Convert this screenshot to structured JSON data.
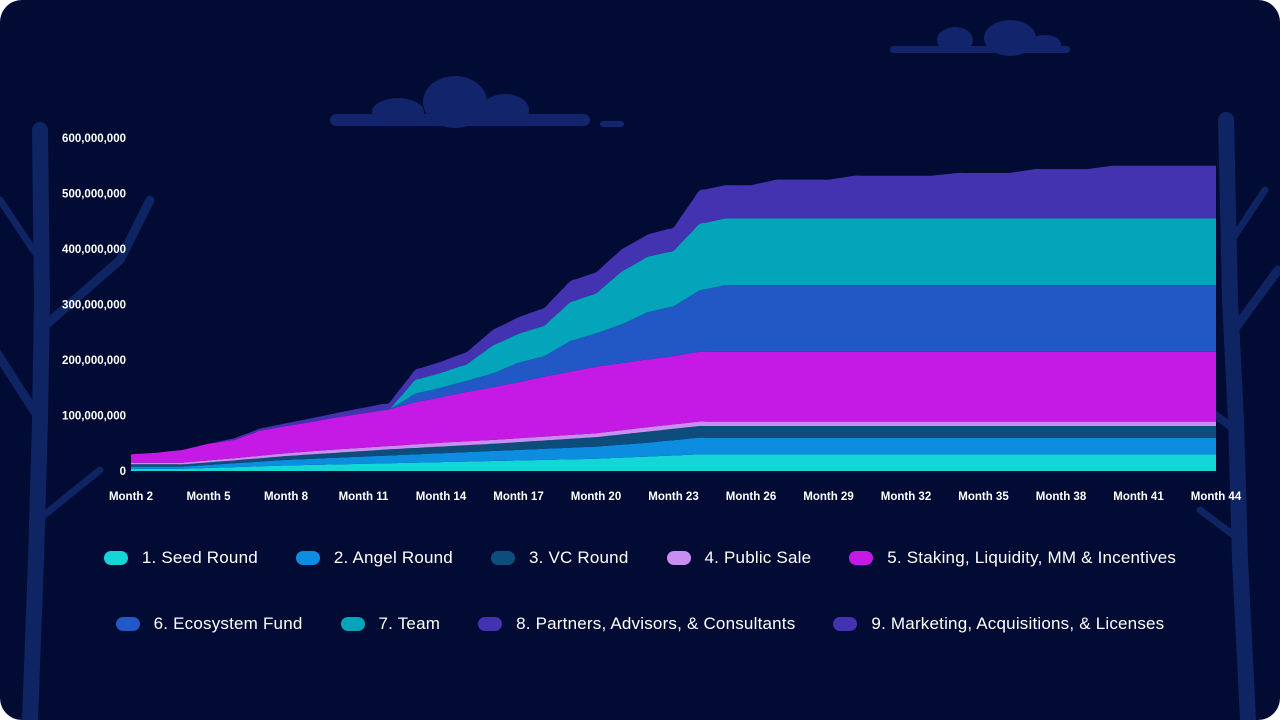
{
  "colors": {
    "background": "#020b33",
    "text": "#ffffff",
    "decoration": "#12246b"
  },
  "chart_data": {
    "type": "area",
    "stacked": true,
    "x_axis_label_prefix": "Month",
    "x_tick_labels": [
      "Month 2",
      "Month 5",
      "Month 8",
      "Month 11",
      "Month 14",
      "Month 17",
      "Month 20",
      "Month 23",
      "Month 26",
      "Month 29",
      "Month 32",
      "Month 35",
      "Month 38",
      "Month 41",
      "Month 44"
    ],
    "y_tick_labels": [
      "0",
      "100,000,000",
      "200,000,000",
      "300,000,000",
      "400,000,000",
      "500,000,000",
      "600,000,000"
    ],
    "ylim": [
      0,
      600000000
    ],
    "xlim": [
      2,
      44
    ],
    "grid": false,
    "legend_position": "bottom",
    "series": [
      {
        "name": "1. Seed Round",
        "color": "#14d6d6",
        "points": [
          [
            2,
            4000000
          ],
          [
            4,
            4000000
          ],
          [
            6,
            7000000
          ],
          [
            8,
            10000000
          ],
          [
            10,
            12000000
          ],
          [
            12,
            14000000
          ],
          [
            14,
            16000000
          ],
          [
            16,
            18000000
          ],
          [
            18,
            20000000
          ],
          [
            20,
            22000000
          ],
          [
            22,
            26000000
          ],
          [
            24,
            30000000
          ],
          [
            26,
            30000000
          ],
          [
            44,
            30000000
          ]
        ]
      },
      {
        "name": "2. Angel Round",
        "color": "#0c8de0",
        "points": [
          [
            2,
            4000000
          ],
          [
            4,
            4000000
          ],
          [
            6,
            7000000
          ],
          [
            8,
            10000000
          ],
          [
            10,
            12000000
          ],
          [
            12,
            14000000
          ],
          [
            14,
            16000000
          ],
          [
            16,
            18000000
          ],
          [
            18,
            20000000
          ],
          [
            20,
            22000000
          ],
          [
            22,
            25000000
          ],
          [
            24,
            30000000
          ],
          [
            26,
            30000000
          ],
          [
            44,
            30000000
          ]
        ]
      },
      {
        "name": "3. VC Round",
        "color": "#0d4d7c",
        "points": [
          [
            2,
            4000000
          ],
          [
            4,
            4000000
          ],
          [
            6,
            5000000
          ],
          [
            8,
            7000000
          ],
          [
            10,
            9000000
          ],
          [
            12,
            11000000
          ],
          [
            14,
            12000000
          ],
          [
            16,
            13000000
          ],
          [
            18,
            15000000
          ],
          [
            20,
            17000000
          ],
          [
            22,
            20000000
          ],
          [
            24,
            21000000
          ],
          [
            26,
            21000000
          ],
          [
            44,
            21000000
          ]
        ]
      },
      {
        "name": "4. Public Sale",
        "color": "#c98ef2",
        "points": [
          [
            2,
            3000000
          ],
          [
            4,
            3000000
          ],
          [
            6,
            4000000
          ],
          [
            8,
            5000000
          ],
          [
            10,
            6000000
          ],
          [
            12,
            6000000
          ],
          [
            14,
            7000000
          ],
          [
            16,
            7000000
          ],
          [
            18,
            7000000
          ],
          [
            20,
            7000000
          ],
          [
            22,
            8000000
          ],
          [
            24,
            8000000
          ],
          [
            26,
            8000000
          ],
          [
            44,
            8000000
          ]
        ]
      },
      {
        "name": "5. Staking, Liquidity, MM & Incentives",
        "color": "#c519e6",
        "points": [
          [
            2,
            15000000
          ],
          [
            3,
            18000000
          ],
          [
            4,
            23000000
          ],
          [
            5,
            30000000
          ],
          [
            6,
            33000000
          ],
          [
            7,
            45000000
          ],
          [
            8,
            49000000
          ],
          [
            9,
            53000000
          ],
          [
            10,
            58000000
          ],
          [
            11,
            62000000
          ],
          [
            12,
            66000000
          ],
          [
            13,
            76000000
          ],
          [
            14,
            82000000
          ],
          [
            15,
            89000000
          ],
          [
            16,
            95000000
          ],
          [
            17,
            101000000
          ],
          [
            18,
            108000000
          ],
          [
            19,
            114000000
          ],
          [
            20,
            120000000
          ],
          [
            21,
            121000000
          ],
          [
            22,
            122000000
          ],
          [
            23,
            123000000
          ],
          [
            24,
            126000000
          ],
          [
            25,
            126000000
          ],
          [
            44,
            126000000
          ]
        ]
      },
      {
        "name": "6. Ecosystem Fund",
        "color": "#2158c5",
        "points": [
          [
            2,
            0
          ],
          [
            12,
            0
          ],
          [
            13,
            15000000
          ],
          [
            14,
            17000000
          ],
          [
            15,
            20000000
          ],
          [
            16,
            25000000
          ],
          [
            17,
            35000000
          ],
          [
            18,
            37000000
          ],
          [
            19,
            55000000
          ],
          [
            20,
            60000000
          ],
          [
            21,
            70000000
          ],
          [
            22,
            85000000
          ],
          [
            23,
            90000000
          ],
          [
            24,
            110000000
          ],
          [
            25,
            120000000
          ],
          [
            44,
            120000000
          ]
        ]
      },
      {
        "name": "7. Team",
        "color": "#04a4bb",
        "points": [
          [
            2,
            0
          ],
          [
            12,
            0
          ],
          [
            13,
            25000000
          ],
          [
            14,
            27000000
          ],
          [
            15,
            30000000
          ],
          [
            16,
            50000000
          ],
          [
            17,
            52000000
          ],
          [
            18,
            55000000
          ],
          [
            19,
            70000000
          ],
          [
            20,
            72000000
          ],
          [
            21,
            95000000
          ],
          [
            22,
            100000000
          ],
          [
            23,
            100000000
          ],
          [
            24,
            120000000
          ],
          [
            25,
            120000000
          ],
          [
            44,
            120000000
          ]
        ]
      },
      {
        "name": "8. Partners, Advisors, & Consultants",
        "color": "#4333b0",
        "points": [
          [
            2,
            0
          ],
          [
            5,
            0
          ],
          [
            6,
            3000000
          ],
          [
            8,
            5000000
          ],
          [
            10,
            8000000
          ],
          [
            12,
            12000000
          ],
          [
            13,
            18000000
          ],
          [
            14,
            20000000
          ],
          [
            15,
            22000000
          ],
          [
            16,
            28000000
          ],
          [
            17,
            30000000
          ],
          [
            18,
            32000000
          ],
          [
            19,
            38000000
          ],
          [
            20,
            38000000
          ],
          [
            21,
            40000000
          ],
          [
            22,
            40000000
          ],
          [
            23,
            42000000
          ],
          [
            24,
            60000000
          ],
          [
            26,
            60000000
          ],
          [
            27,
            70000000
          ],
          [
            29,
            70000000
          ],
          [
            30,
            77000000
          ],
          [
            33,
            77000000
          ],
          [
            34,
            82000000
          ],
          [
            36,
            82000000
          ],
          [
            37,
            89000000
          ],
          [
            39,
            89000000
          ],
          [
            40,
            95000000
          ],
          [
            44,
            95000000
          ]
        ]
      },
      {
        "name": "9. Marketing, Acquisitions, & Licenses",
        "color": "#4333b0",
        "points": [
          [
            2,
            0
          ],
          [
            44,
            0
          ]
        ]
      }
    ]
  },
  "legend": {
    "row1": [
      {
        "label": "1. Seed Round",
        "color": "#14d6d6"
      },
      {
        "label": "2. Angel Round",
        "color": "#0c8de0"
      },
      {
        "label": "3. VC Round",
        "color": "#0d4d7c"
      },
      {
        "label": "4. Public Sale",
        "color": "#c98ef2"
      },
      {
        "label": "5. Staking, Liquidity, MM & Incentives",
        "color": "#c519e6"
      }
    ],
    "row2": [
      {
        "label": "6. Ecosystem Fund",
        "color": "#2158c5"
      },
      {
        "label": "7. Team",
        "color": "#04a4bb"
      },
      {
        "label": "8. Partners, Advisors, & Consultants",
        "color": "#4333b0"
      },
      {
        "label": "9. Marketing, Acquisitions, & Licenses",
        "color": "#4333b0"
      }
    ]
  }
}
